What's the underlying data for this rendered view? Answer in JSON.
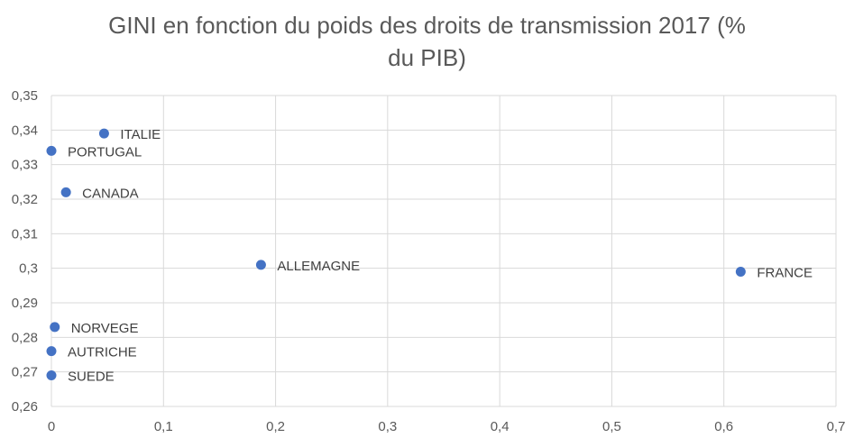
{
  "chart_data": {
    "type": "scatter",
    "title_lines": [
      "GINI en fonction du poids des droits de transmission 2017 (%",
      "du PIB)"
    ],
    "xlabel": "",
    "ylabel": "",
    "xlim": [
      0,
      0.7
    ],
    "ylim": [
      0.26,
      0.35
    ],
    "x_ticks": [
      0,
      0.1,
      0.2,
      0.3,
      0.4,
      0.5,
      0.6,
      0.7
    ],
    "x_tick_labels": [
      "0",
      "0,1",
      "0,2",
      "0,3",
      "0,4",
      "0,5",
      "0,6",
      "0,7"
    ],
    "y_ticks": [
      0.26,
      0.27,
      0.28,
      0.29,
      0.3,
      0.31,
      0.32,
      0.33,
      0.34,
      0.35
    ],
    "y_tick_labels": [
      "0,26",
      "0,27",
      "0,28",
      "0,29",
      "0,3",
      "0,31",
      "0,32",
      "0,33",
      "0,34",
      "0,35"
    ],
    "grid": true,
    "legend": false,
    "marker_color": "#4472C4",
    "points": [
      {
        "label": "ITALIE",
        "x": 0.047,
        "y": 0.339
      },
      {
        "label": "PORTUGAL",
        "x": 0.0,
        "y": 0.334
      },
      {
        "label": "CANADA",
        "x": 0.013,
        "y": 0.322
      },
      {
        "label": "ALLEMAGNE",
        "x": 0.187,
        "y": 0.301
      },
      {
        "label": "FRANCE",
        "x": 0.615,
        "y": 0.299
      },
      {
        "label": "NORVEGE",
        "x": 0.003,
        "y": 0.283
      },
      {
        "label": "AUTRICHE",
        "x": 0.0,
        "y": 0.276
      },
      {
        "label": "SUEDE",
        "x": 0.0,
        "y": 0.269
      }
    ]
  }
}
